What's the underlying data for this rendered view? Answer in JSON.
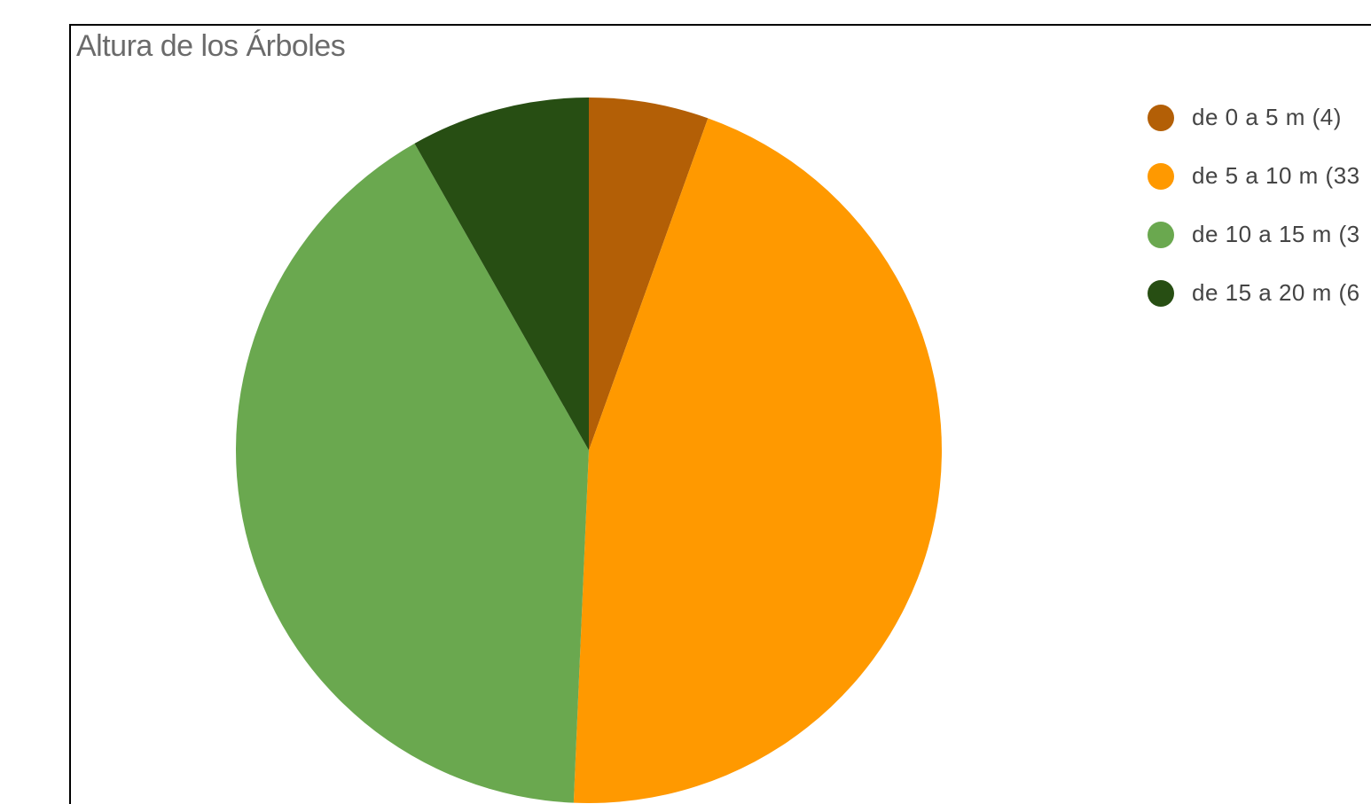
{
  "chart_data": {
    "type": "pie",
    "title": "Altura de los Árboles",
    "series": [
      {
        "values": [
          4,
          33,
          30,
          6
        ],
        "colors": [
          "#b35f06",
          "#ff9900",
          "#6aa84f",
          "#274e13"
        ]
      }
    ],
    "categories": [
      "de 0 a 5 m",
      "de 5 a 10 m",
      "de 10 a 15 m",
      "de 15 a 20 m"
    ],
    "legend": {
      "position": "right",
      "items": [
        {
          "label": "de 0 a 5 m (4)",
          "color": "#b35f06"
        },
        {
          "label": "de 5 a 10 m (33",
          "color": "#ff9900"
        },
        {
          "label": "de 10 a 15 m (3",
          "color": "#6aa84f"
        },
        {
          "label": "de 15 a 20 m (6",
          "color": "#274e13"
        }
      ]
    }
  }
}
